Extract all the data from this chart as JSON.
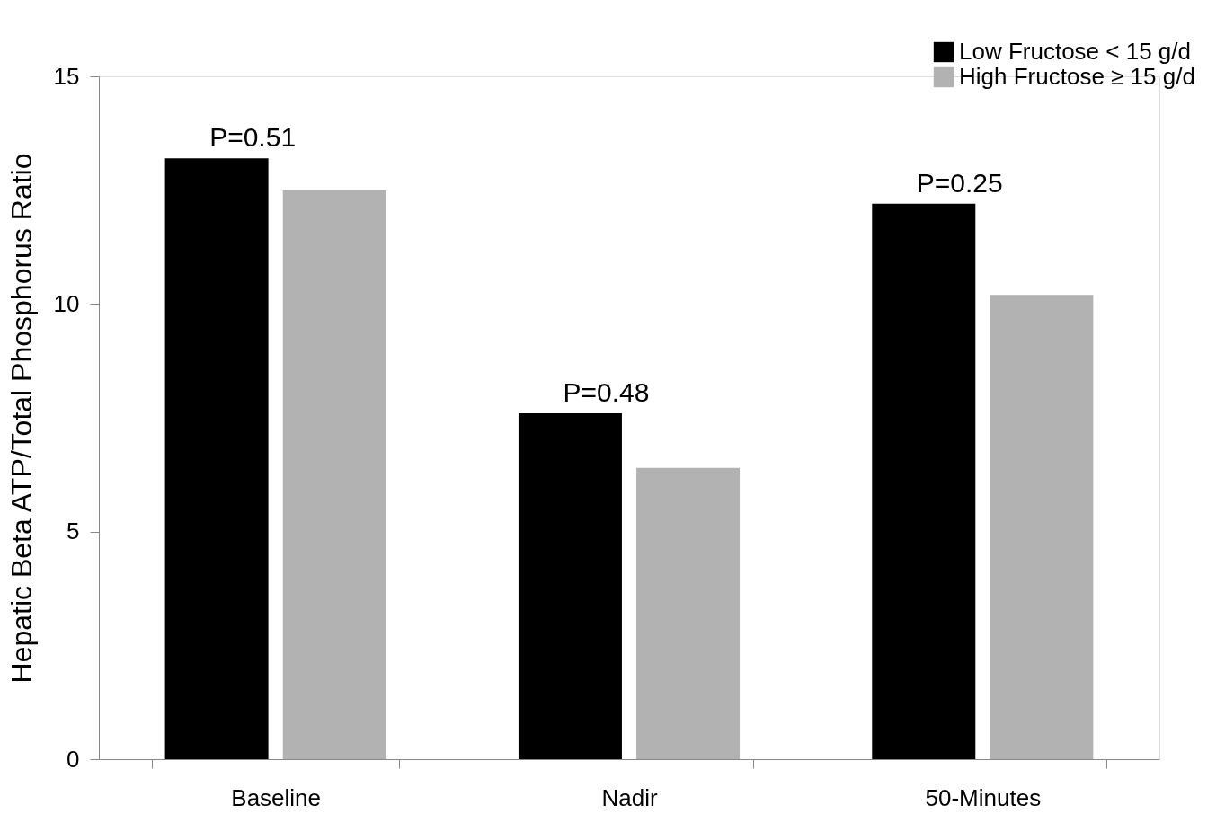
{
  "chart_data": {
    "type": "bar",
    "ylabel": "Hepatic Beta ATP/Total Phosphorus Ratio",
    "categories": [
      "Baseline",
      "Nadir",
      "50-Minutes"
    ],
    "series": [
      {
        "name": "Low Fructose < 15 g/d",
        "color": "#000000",
        "values": [
          13.2,
          7.6,
          12.2
        ]
      },
      {
        "name": "High Fructose ≥ 15 g/d",
        "color": "#b2b2b2",
        "values": [
          12.5,
          6.4,
          10.2
        ]
      }
    ],
    "ylim": [
      0,
      15
    ],
    "yticks": [
      0,
      5,
      10,
      15
    ],
    "grid": false,
    "legend": "top right",
    "annotations": [
      "P=0.51",
      "P=0.48",
      "P=0.25"
    ]
  }
}
